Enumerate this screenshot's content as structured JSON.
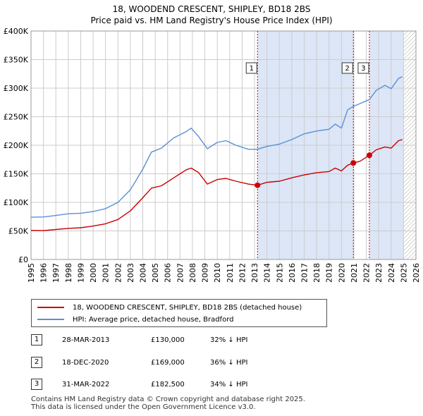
{
  "title": "18, WOODEND CRESCENT, SHIPLEY, BD18 2BS",
  "subtitle": "Price paid vs. HM Land Registry's House Price Index (HPI)",
  "colors": {
    "property": "#cc0000",
    "hpi": "#5a8fd6",
    "shade": "#dce6f7",
    "marker_line": "#cc0000",
    "grid": "#cccccc"
  },
  "chart_data": {
    "type": "line",
    "xlabel": "",
    "ylabel": "",
    "xlim": [
      1995,
      2026
    ],
    "ylim": [
      0,
      400000
    ],
    "x_ticks": [
      "1995",
      "1996",
      "1997",
      "1998",
      "1999",
      "2000",
      "2001",
      "2002",
      "2003",
      "2004",
      "2005",
      "2006",
      "2007",
      "2008",
      "2009",
      "2010",
      "2011",
      "2012",
      "2013",
      "2014",
      "2015",
      "2016",
      "2017",
      "2018",
      "2019",
      "2020",
      "2021",
      "2022",
      "2023",
      "2024",
      "2025",
      "2026"
    ],
    "y_ticks": [
      {
        "value": 0,
        "label": "£0"
      },
      {
        "value": 50000,
        "label": "£50K"
      },
      {
        "value": 100000,
        "label": "£100K"
      },
      {
        "value": 150000,
        "label": "£150K"
      },
      {
        "value": 200000,
        "label": "£200K"
      },
      {
        "value": 250000,
        "label": "£250K"
      },
      {
        "value": 300000,
        "label": "£300K"
      },
      {
        "value": 350000,
        "label": "£350K"
      },
      {
        "value": 400000,
        "label": "£400K"
      }
    ],
    "shaded_ranges": [
      [
        2013.24,
        2020.96
      ],
      [
        2022.25,
        2025.0
      ]
    ],
    "hatched_from": 2025.0,
    "series": [
      {
        "name": "18, WOODEND CRESCENT, SHIPLEY, BD18 2BS (detached house)",
        "color": "#cc0000",
        "points": [
          [
            1995.0,
            51000
          ],
          [
            1996.0,
            50500
          ],
          [
            1997.0,
            52500
          ],
          [
            1998.0,
            54500
          ],
          [
            1999.0,
            55500
          ],
          [
            2000.0,
            58500
          ],
          [
            2001.0,
            62500
          ],
          [
            2002.0,
            70000
          ],
          [
            2003.0,
            85000
          ],
          [
            2004.0,
            108000
          ],
          [
            2004.7,
            125000
          ],
          [
            2005.5,
            129000
          ],
          [
            2006.5,
            143000
          ],
          [
            2007.5,
            157000
          ],
          [
            2007.9,
            160000
          ],
          [
            2008.5,
            152000
          ],
          [
            2009.2,
            132000
          ],
          [
            2010.0,
            140000
          ],
          [
            2010.7,
            142000
          ],
          [
            2011.5,
            137000
          ],
          [
            2012.5,
            132000
          ],
          [
            2013.24,
            130000
          ],
          [
            2014.0,
            135000
          ],
          [
            2015.0,
            137000
          ],
          [
            2016.0,
            143000
          ],
          [
            2017.0,
            148000
          ],
          [
            2018.0,
            152000
          ],
          [
            2019.0,
            154000
          ],
          [
            2019.5,
            160000
          ],
          [
            2020.0,
            155000
          ],
          [
            2020.5,
            165000
          ],
          [
            2020.96,
            169000
          ],
          [
            2021.5,
            172000
          ],
          [
            2022.25,
            182500
          ],
          [
            2022.8,
            192000
          ],
          [
            2023.5,
            197000
          ],
          [
            2024.0,
            195000
          ],
          [
            2024.6,
            208000
          ],
          [
            2024.9,
            210000
          ]
        ]
      },
      {
        "name": "HPI: Average price, detached house, Bradford",
        "color": "#5a8fd6",
        "points": [
          [
            1995.0,
            74000
          ],
          [
            1996.0,
            74500
          ],
          [
            1997.0,
            77000
          ],
          [
            1998.0,
            80000
          ],
          [
            1999.0,
            81000
          ],
          [
            2000.0,
            84000
          ],
          [
            2001.0,
            89000
          ],
          [
            2002.0,
            100000
          ],
          [
            2003.0,
            122000
          ],
          [
            2004.0,
            158000
          ],
          [
            2004.7,
            188000
          ],
          [
            2005.5,
            195000
          ],
          [
            2006.5,
            213000
          ],
          [
            2007.5,
            224000
          ],
          [
            2007.9,
            230000
          ],
          [
            2008.5,
            215000
          ],
          [
            2009.2,
            194000
          ],
          [
            2010.0,
            205000
          ],
          [
            2010.7,
            208000
          ],
          [
            2011.5,
            200000
          ],
          [
            2012.5,
            193000
          ],
          [
            2013.24,
            193000
          ],
          [
            2014.0,
            198000
          ],
          [
            2015.0,
            202000
          ],
          [
            2016.0,
            210000
          ],
          [
            2017.0,
            220000
          ],
          [
            2018.0,
            225000
          ],
          [
            2019.0,
            228000
          ],
          [
            2019.5,
            237000
          ],
          [
            2020.0,
            230000
          ],
          [
            2020.5,
            262000
          ],
          [
            2020.96,
            268000
          ],
          [
            2021.5,
            273000
          ],
          [
            2022.25,
            280000
          ],
          [
            2022.8,
            296000
          ],
          [
            2023.5,
            305000
          ],
          [
            2024.0,
            299000
          ],
          [
            2024.6,
            317000
          ],
          [
            2024.9,
            320000
          ]
        ]
      }
    ],
    "sales": [
      {
        "id": "1",
        "x": 2013.24,
        "y": 130000
      },
      {
        "id": "2",
        "x": 2020.96,
        "y": 169000
      },
      {
        "id": "3",
        "x": 2022.25,
        "y": 182500
      }
    ]
  },
  "legend": {
    "property_label": "18, WOODEND CRESCENT, SHIPLEY, BD18 2BS (detached house)",
    "hpi_label": "HPI: Average price, detached house, Bradford"
  },
  "sales_table": [
    {
      "num": "1",
      "date": "28-MAR-2013",
      "price": "£130,000",
      "diff": "32% ↓ HPI"
    },
    {
      "num": "2",
      "date": "18-DEC-2020",
      "price": "£169,000",
      "diff": "36% ↓ HPI"
    },
    {
      "num": "3",
      "date": "31-MAR-2022",
      "price": "£182,500",
      "diff": "34% ↓ HPI"
    }
  ],
  "footer": {
    "line1": "Contains HM Land Registry data © Crown copyright and database right 2025.",
    "line2": "This data is licensed under the Open Government Licence v3.0."
  }
}
